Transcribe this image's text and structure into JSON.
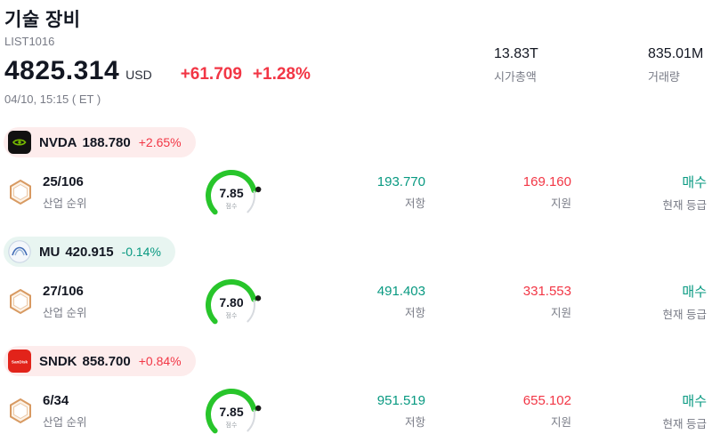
{
  "header": {
    "title": "기술 장비",
    "list_id": "LIST1016",
    "price": "4825.314",
    "currency": "USD",
    "change_abs": "+61.709",
    "change_pct": "+1.28%",
    "datetime": "04/10, 15:15 ( ET )",
    "market_cap": {
      "value": "13.83T",
      "label": "시가총액"
    },
    "volume": {
      "value": "835.01M",
      "label": "거래량"
    }
  },
  "labels": {
    "industry_rank": "산업 순위",
    "resistance": "저항",
    "support": "지원",
    "current_rating": "현재 등급",
    "score": "점수"
  },
  "colors": {
    "up": "#f23645",
    "down": "#089981",
    "gauge": "#28c52b",
    "gauge_rest": "#d7dadf"
  },
  "stocks": [
    {
      "ticker": "NVDA",
      "price": "188.780",
      "change": "+2.65%",
      "direction": "up",
      "rank": "25/106",
      "score": "7.85",
      "resistance": "193.770",
      "support": "169.160",
      "rating": "매수",
      "logo": "nvidia-logo"
    },
    {
      "ticker": "MU",
      "price": "420.915",
      "change": "-0.14%",
      "direction": "down",
      "rank": "27/106",
      "score": "7.80",
      "resistance": "491.403",
      "support": "331.553",
      "rating": "매수",
      "logo": "micron-logo"
    },
    {
      "ticker": "SNDK",
      "price": "858.700",
      "change": "+0.84%",
      "direction": "up",
      "rank": "6/34",
      "score": "7.85",
      "resistance": "951.519",
      "support": "655.102",
      "rating": "매수",
      "logo": "sandisk-logo"
    }
  ]
}
